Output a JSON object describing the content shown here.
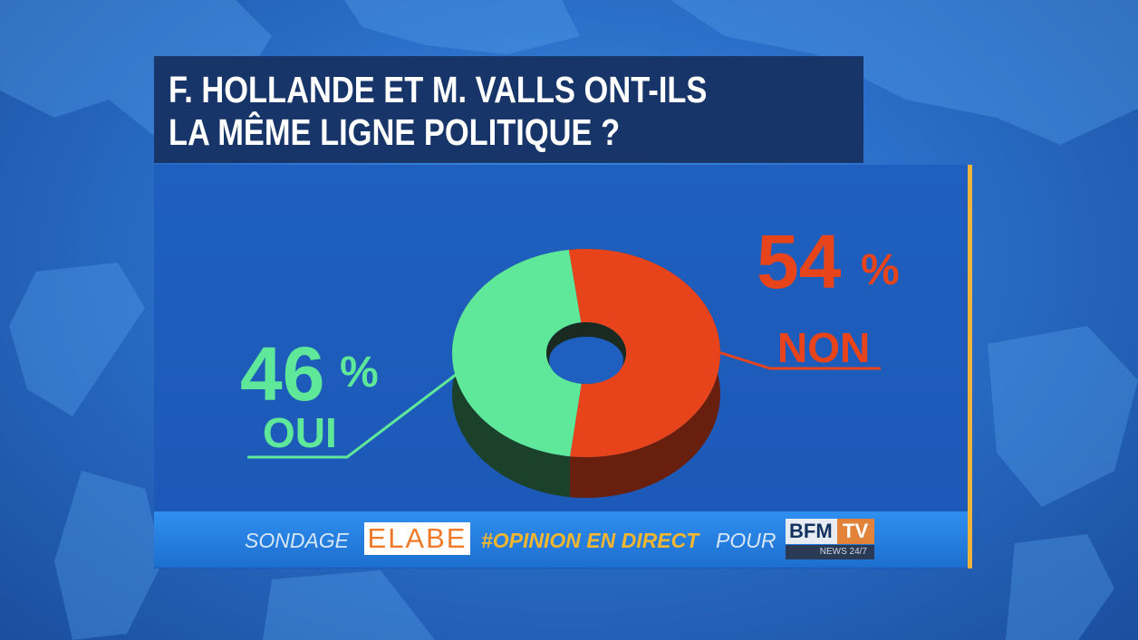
{
  "title": {
    "line1": "F. HOLLANDE ET M. VALLS ONT-ILS",
    "line2": "LA MÊME LIGNE POLITIQUE ?"
  },
  "chart_data": {
    "type": "pie",
    "title": "F. HOLLANDE ET M. VALLS ONT-ILS LA MÊME LIGNE POLITIQUE ?",
    "categories": [
      "NON",
      "OUI"
    ],
    "values": [
      54,
      46
    ],
    "value_labels": [
      "54",
      "46"
    ],
    "unit": "%",
    "colors": [
      "#e8441c",
      "#5fe79a"
    ],
    "style": "3d-donut"
  },
  "footer": {
    "sondage": "SONDAGE",
    "elabe": "ELABE",
    "hashtag": "#OPINION EN DIRECT",
    "pour": "POUR",
    "logo_main": "BFM",
    "logo_tv": "TV",
    "logo_sub": "NEWS 24/7"
  },
  "colors": {
    "title_bg": "#173569",
    "panel_bg": "#1f5fbf",
    "accent": "#f0b43a"
  }
}
